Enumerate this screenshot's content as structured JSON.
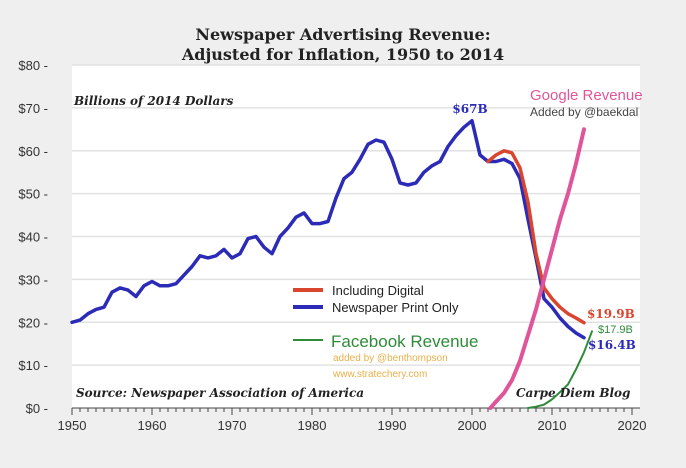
{
  "chart_data": {
    "type": "line",
    "title": [
      "Newspaper Advertising Revenue:",
      "Adjusted for Inflation, 1950 to 2014"
    ],
    "ylabel": "Billions of 2014 Dollars",
    "xlim": [
      1950,
      2020
    ],
    "ylim": [
      0,
      80
    ],
    "xticks": [
      1950,
      1960,
      1970,
      1980,
      1990,
      2000,
      2010,
      2020
    ],
    "yticks": [
      0,
      10,
      20,
      30,
      40,
      50,
      60,
      70,
      80
    ],
    "ytick_labels": [
      "$0",
      "$10",
      "$20",
      "$30",
      "$40",
      "$50",
      "$60",
      "$70",
      "$80"
    ],
    "grid": true,
    "legend_position": "center-right",
    "series": [
      {
        "name": "Newspaper Print Only",
        "color": "#2b2bb8",
        "x": [
          1950,
          1951,
          1952,
          1953,
          1954,
          1955,
          1956,
          1957,
          1958,
          1959,
          1960,
          1961,
          1962,
          1963,
          1964,
          1965,
          1966,
          1967,
          1968,
          1969,
          1970,
          1971,
          1972,
          1973,
          1974,
          1975,
          1976,
          1977,
          1978,
          1979,
          1980,
          1981,
          1982,
          1983,
          1984,
          1985,
          1986,
          1987,
          1988,
          1989,
          1990,
          1991,
          1992,
          1993,
          1994,
          1995,
          1996,
          1997,
          1998,
          1999,
          2000,
          2001,
          2002,
          2003,
          2004,
          2005,
          2006,
          2007,
          2008,
          2009,
          2010,
          2011,
          2012,
          2013,
          2014
        ],
        "y": [
          20,
          20.5,
          22,
          23,
          23.5,
          27,
          28,
          27.5,
          26,
          28.5,
          29.5,
          28.5,
          28.5,
          29,
          31,
          33,
          35.5,
          35,
          35.5,
          37,
          35,
          36,
          39.5,
          40,
          37.5,
          36,
          40,
          42,
          44.5,
          45.5,
          43,
          43,
          43.5,
          49,
          53.5,
          55,
          58,
          61.5,
          62.5,
          62,
          58,
          52.5,
          52,
          52.5,
          55,
          56.5,
          57.5,
          61,
          63.5,
          65.5,
          67,
          59,
          57.5,
          57.5,
          58,
          57,
          53.5,
          44,
          35,
          25.5,
          23.5,
          21,
          19,
          17.5,
          16.4
        ]
      },
      {
        "name": "Including Digital",
        "color": "#d9452e",
        "x": [
          2002,
          2003,
          2004,
          2005,
          2006,
          2007,
          2008,
          2009,
          2010,
          2011,
          2012,
          2013,
          2014
        ],
        "y": [
          57.5,
          59,
          60,
          59.5,
          56,
          48,
          36,
          28,
          25.5,
          23.5,
          22,
          21,
          19.9
        ]
      },
      {
        "name": "Google Revenue",
        "color": "#e0559a",
        "x": [
          2002.3,
          2003,
          2004,
          2005,
          2006,
          2007,
          2008,
          2009,
          2010,
          2011,
          2012,
          2013,
          2014
        ],
        "y": [
          0,
          1.5,
          3.5,
          6.5,
          11,
          17,
          23,
          30,
          37,
          44,
          50,
          57,
          65
        ]
      },
      {
        "name": "Facebook Revenue",
        "color": "#2e8b3a",
        "x": [
          2007,
          2008,
          2009,
          2010,
          2011,
          2012,
          2013,
          2014,
          2015
        ],
        "y": [
          0,
          0.3,
          0.8,
          2,
          3.7,
          5.5,
          9,
          13,
          17.9
        ]
      }
    ],
    "annotations": {
      "peak": "$67B",
      "digital_end": "$19.9B",
      "print_end": "$16.4B",
      "facebook_end": "$17.9B",
      "google_credit": "Added by @baekdal",
      "facebook_credit": "added by @benthompson",
      "facebook_site": "www.stratechery.com",
      "source": "Source: Newspaper Association of America",
      "blog": "Carpe Diem Blog"
    }
  }
}
